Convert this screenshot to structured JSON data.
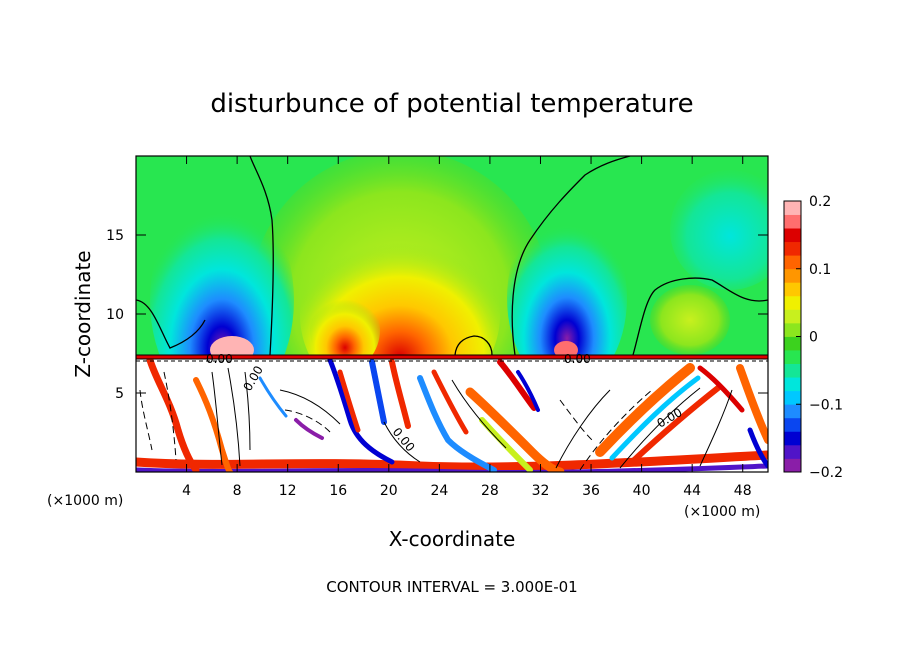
{
  "chart_data": {
    "type": "heatmap",
    "title": "disturbunce of potential temperature",
    "xlabel": "X-coordinate",
    "ylabel": "Z-coordinate",
    "x_unit_left": "(×1000 m)",
    "x_unit_right": "(×1000 m)",
    "xlim": [
      0,
      50
    ],
    "ylim": [
      0,
      20
    ],
    "x_ticks": [
      4,
      8,
      12,
      16,
      20,
      24,
      28,
      32,
      36,
      40,
      44,
      48
    ],
    "y_ticks": [
      5,
      10,
      15
    ],
    "footer": "CONTOUR INTERVAL = 3.000E-01",
    "contour_labels": [
      "0.00",
      "0.00",
      "0.00",
      "0.00",
      "0.00"
    ],
    "colorbar": {
      "min": -0.2,
      "max": 0.2,
      "ticks": [
        -0.2,
        -0.1,
        0,
        0.1,
        0.2
      ],
      "tick_labels": [
        "−0.2",
        "−0.1",
        "0",
        "0.1",
        "0.2"
      ],
      "colors": [
        "#8a1ea8",
        "#5014c8",
        "#0000d2",
        "#0a46f0",
        "#1e8cff",
        "#00c8ff",
        "#00e6dc",
        "#14e696",
        "#28e650",
        "#3cd21e",
        "#8ce61e",
        "#c8f01e",
        "#f0f000",
        "#ffc800",
        "#ff9600",
        "#ff6400",
        "#f02800",
        "#dc0000",
        "#ff6e6e",
        "#ffb4b4"
      ]
    }
  }
}
